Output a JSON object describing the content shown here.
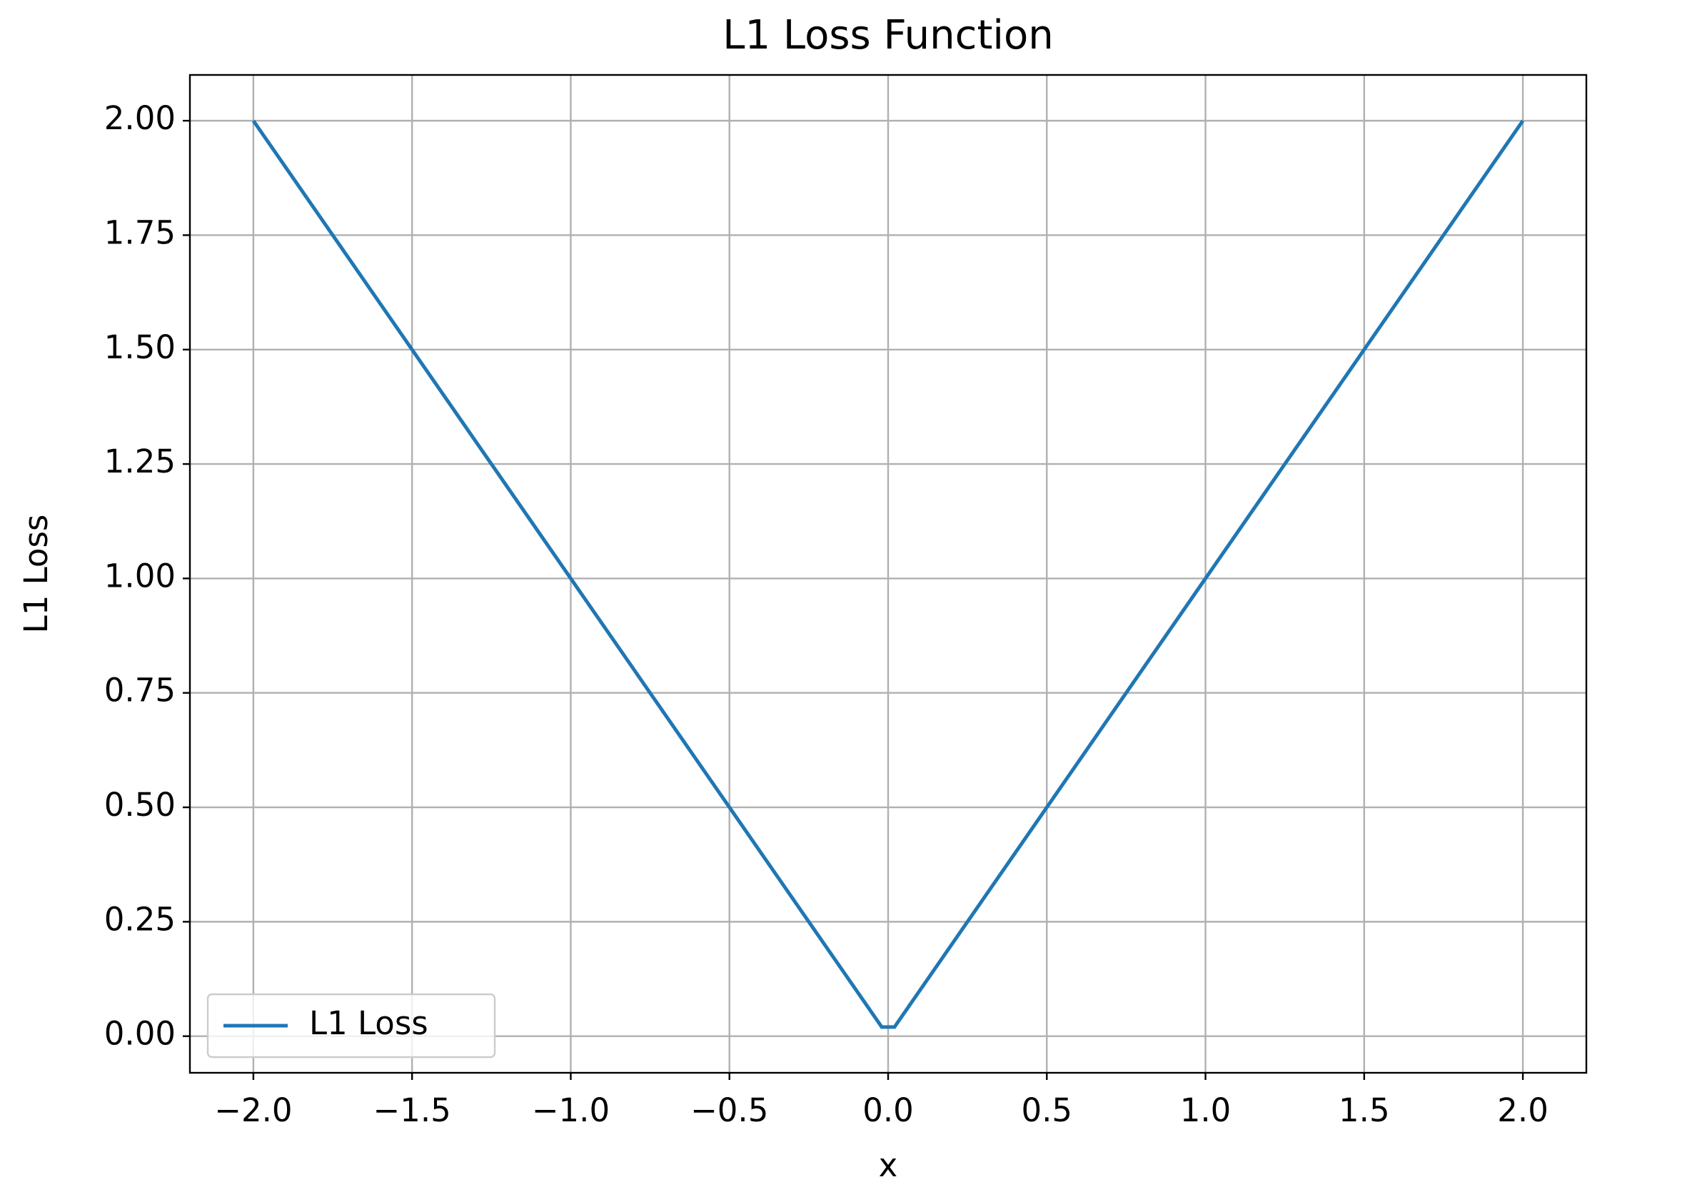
{
  "chart_data": {
    "type": "line",
    "title": "L1 Loss Function",
    "xlabel": "x",
    "ylabel": "L1 Loss",
    "x": [
      -2,
      -0.02,
      0.02,
      2
    ],
    "series": [
      {
        "name": "L1 Loss",
        "color": "#1f77b4",
        "values": [
          2,
          0.02,
          0.02,
          2
        ]
      }
    ],
    "xlim": [
      -2.2,
      2.2
    ],
    "ylim": [
      -0.08,
      2.1
    ],
    "xticks": [
      {
        "value": -2,
        "label": "−2.0"
      },
      {
        "value": -1.5,
        "label": "−1.5"
      },
      {
        "value": -1,
        "label": "−1.0"
      },
      {
        "value": -0.5,
        "label": "−0.5"
      },
      {
        "value": 0,
        "label": "0.0"
      },
      {
        "value": 0.5,
        "label": "0.5"
      },
      {
        "value": 1,
        "label": "1.0"
      },
      {
        "value": 1.5,
        "label": "1.5"
      },
      {
        "value": 2,
        "label": "2.0"
      }
    ],
    "yticks": [
      {
        "value": 0,
        "label": "0.00"
      },
      {
        "value": 0.25,
        "label": "0.25"
      },
      {
        "value": 0.5,
        "label": "0.50"
      },
      {
        "value": 0.75,
        "label": "0.75"
      },
      {
        "value": 1,
        "label": "1.00"
      },
      {
        "value": 1.25,
        "label": "1.25"
      },
      {
        "value": 1.5,
        "label": "1.50"
      },
      {
        "value": 1.75,
        "label": "1.75"
      },
      {
        "value": 2,
        "label": "2.00"
      }
    ],
    "grid": true,
    "legend": "lower left"
  }
}
